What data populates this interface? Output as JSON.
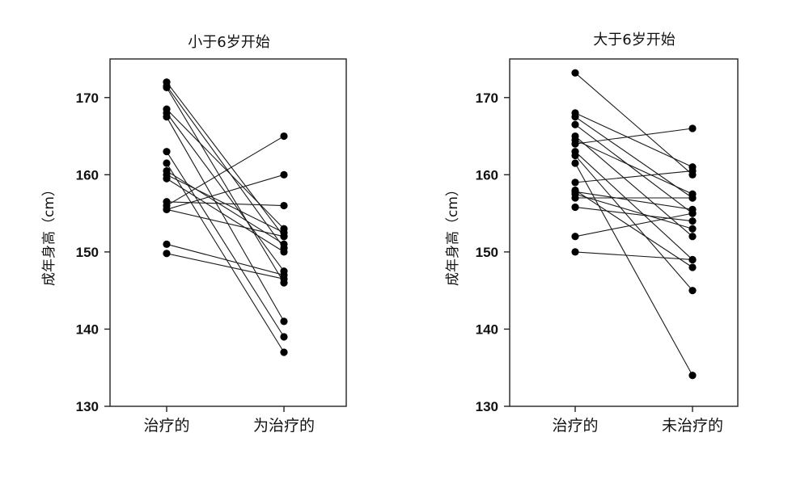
{
  "chart_data": [
    {
      "type": "line",
      "title": "小于6岁开始",
      "xlabel": "",
      "ylabel": "成年身高（cm）",
      "categories": [
        "治疗的",
        "为治疗的"
      ],
      "ylim": [
        130,
        175
      ],
      "yticks": [
        130,
        140,
        150,
        160,
        170
      ],
      "grid": false,
      "legend": "none",
      "series": [
        {
          "values": [
            172.0,
            152.0
          ]
        },
        {
          "values": [
            171.5,
            150.5
          ]
        },
        {
          "values": [
            171.3,
            146.0
          ]
        },
        {
          "values": [
            168.5,
            153.0
          ]
        },
        {
          "values": [
            168.0,
            147.5
          ]
        },
        {
          "values": [
            167.5,
            141.0
          ]
        },
        {
          "values": [
            163.0,
            139.0
          ]
        },
        {
          "values": [
            161.5,
            137.0
          ]
        },
        {
          "values": [
            160.5,
            151.0
          ]
        },
        {
          "values": [
            160.0,
            152.5
          ]
        },
        {
          "values": [
            159.5,
            150.0
          ]
        },
        {
          "values": [
            156.5,
            156.0
          ]
        },
        {
          "values": [
            156.0,
            165.0
          ]
        },
        {
          "values": [
            155.5,
            160.0
          ]
        },
        {
          "values": [
            155.5,
            152.0
          ]
        },
        {
          "values": [
            151.0,
            147.0
          ]
        },
        {
          "values": [
            149.8,
            146.5
          ]
        }
      ]
    },
    {
      "type": "line",
      "title": "大于6岁开始",
      "xlabel": "",
      "ylabel": "成年身高（cm）",
      "categories": [
        "治疗的",
        "未治疗的"
      ],
      "ylim": [
        130,
        175
      ],
      "yticks": [
        130,
        140,
        150,
        160,
        170
      ],
      "grid": false,
      "legend": "none",
      "series": [
        {
          "values": [
            173.2,
            160.0
          ]
        },
        {
          "values": [
            168.0,
            161.0
          ]
        },
        {
          "values": [
            167.5,
            157.0
          ]
        },
        {
          "values": [
            166.5,
            155.0
          ]
        },
        {
          "values": [
            165.0,
            152.0
          ]
        },
        {
          "values": [
            164.5,
            157.5
          ]
        },
        {
          "values": [
            164.0,
            166.0
          ]
        },
        {
          "values": [
            163.0,
            149.0
          ]
        },
        {
          "values": [
            162.5,
            145.0
          ]
        },
        {
          "values": [
            161.5,
            134.0
          ]
        },
        {
          "values": [
            159.0,
            160.5
          ]
        },
        {
          "values": [
            158.0,
            148.0
          ]
        },
        {
          "values": [
            157.8,
            155.5
          ]
        },
        {
          "values": [
            157.5,
            153.0
          ]
        },
        {
          "values": [
            157.0,
            157.0
          ]
        },
        {
          "values": [
            155.8,
            154.0
          ]
        },
        {
          "values": [
            152.0,
            155.0
          ]
        },
        {
          "values": [
            150.0,
            149.0
          ]
        }
      ]
    }
  ]
}
